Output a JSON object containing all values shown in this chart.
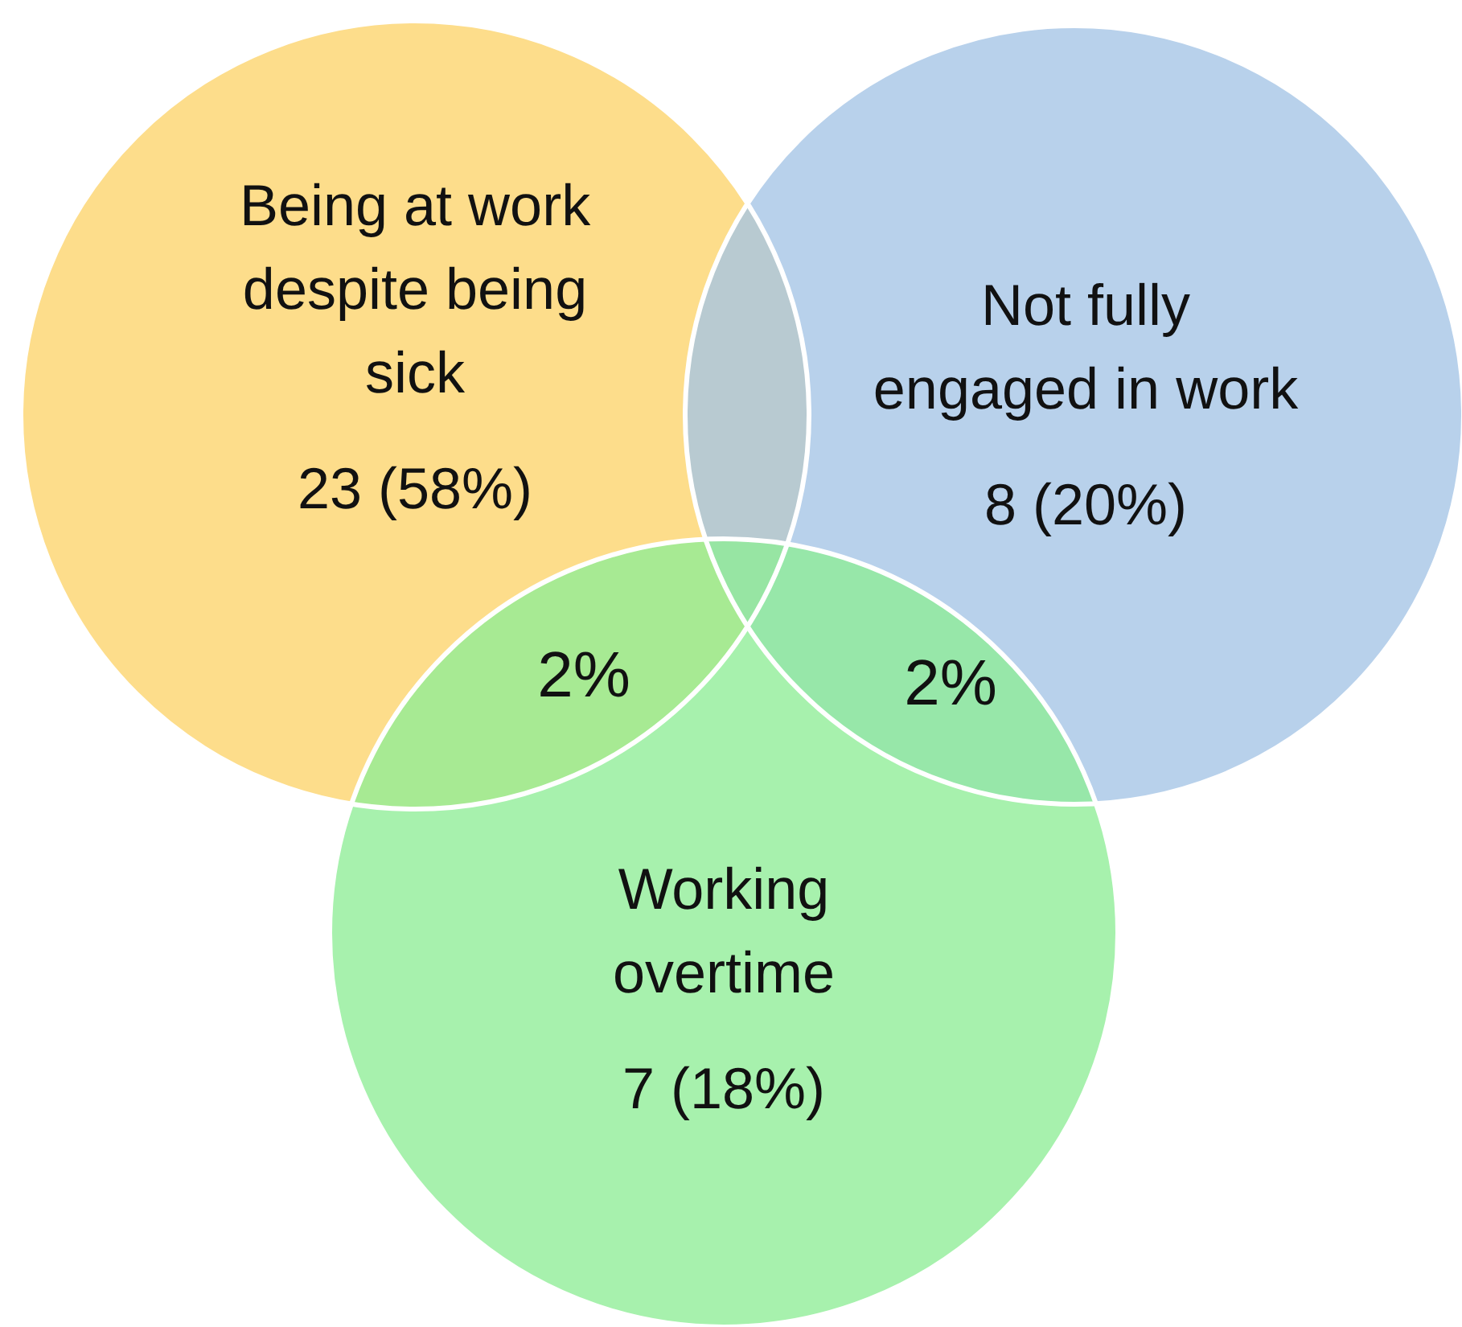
{
  "chart_data": {
    "type": "other",
    "categories": [
      "Being at work despite being sick",
      "Not fully engaged in work",
      "Working overtime"
    ],
    "values": [
      23,
      8,
      7
    ],
    "value_labels": [
      "23 (58%)",
      "8 (20%)",
      "7 (18%)"
    ],
    "colors": [
      "#fdd46a",
      "#a4c4e6",
      "#8eed96"
    ],
    "annotations": [
      "2%",
      "2%"
    ]
  }
}
